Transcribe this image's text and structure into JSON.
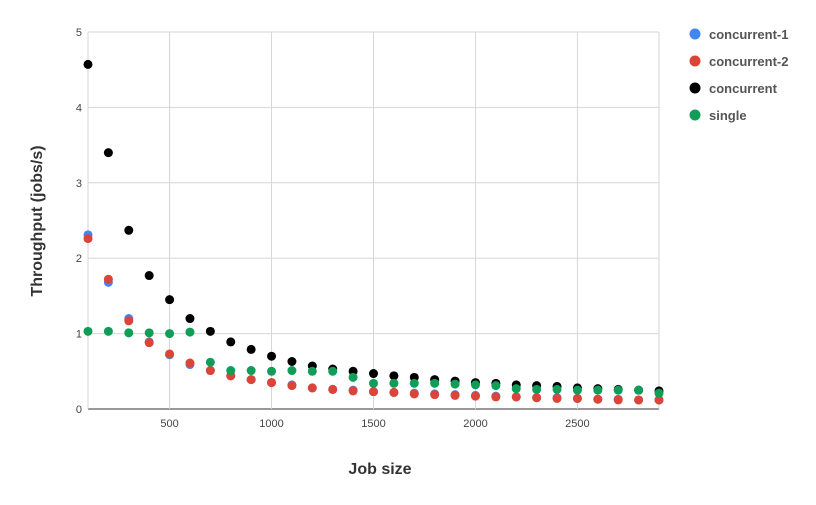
{
  "chart_data": {
    "type": "scatter",
    "xlabel": "Job size",
    "ylabel": "Throughput (jobs/s)",
    "xlim": [
      100,
      2900
    ],
    "ylim": [
      0,
      5
    ],
    "x_ticks": [
      500,
      1000,
      1500,
      2000,
      2500
    ],
    "y_ticks": [
      0,
      1,
      2,
      3,
      4,
      5
    ],
    "grid": true,
    "legend_position": "right",
    "x": [
      100,
      200,
      300,
      400,
      500,
      600,
      700,
      800,
      900,
      1000,
      1100,
      1200,
      1300,
      1400,
      1500,
      1600,
      1700,
      1800,
      1900,
      2000,
      2100,
      2200,
      2300,
      2400,
      2500,
      2600,
      2700,
      2800,
      2900
    ],
    "series": [
      {
        "name": "concurrent-1",
        "color": "#4285f4",
        "values": [
          2.31,
          1.68,
          1.2,
          0.89,
          0.72,
          0.59,
          0.51,
          0.44,
          0.39,
          0.35,
          0.32,
          0.28,
          0.26,
          0.25,
          0.23,
          0.22,
          0.21,
          0.2,
          0.19,
          0.18,
          0.17,
          0.16,
          0.15,
          0.15,
          0.14,
          0.13,
          0.13,
          0.12,
          0.12
        ]
      },
      {
        "name": "concurrent-2",
        "color": "#db4437",
        "values": [
          2.26,
          1.72,
          1.17,
          0.88,
          0.73,
          0.61,
          0.51,
          0.44,
          0.39,
          0.35,
          0.31,
          0.28,
          0.26,
          0.24,
          0.23,
          0.22,
          0.2,
          0.19,
          0.18,
          0.17,
          0.16,
          0.16,
          0.15,
          0.14,
          0.14,
          0.13,
          0.12,
          0.12,
          0.12
        ]
      },
      {
        "name": "concurrent",
        "color": "#000000",
        "values": [
          4.57,
          3.4,
          2.37,
          1.77,
          1.45,
          1.2,
          1.03,
          0.89,
          0.79,
          0.7,
          0.63,
          0.57,
          0.53,
          0.5,
          0.47,
          0.44,
          0.42,
          0.39,
          0.37,
          0.35,
          0.34,
          0.32,
          0.31,
          0.3,
          0.28,
          0.27,
          0.26,
          0.25,
          0.24
        ]
      },
      {
        "name": "single",
        "color": "#0f9d58",
        "values": [
          1.03,
          1.03,
          1.01,
          1.01,
          1.0,
          1.02,
          0.62,
          0.51,
          0.51,
          0.5,
          0.51,
          0.5,
          0.5,
          0.42,
          0.34,
          0.34,
          0.34,
          0.34,
          0.33,
          0.32,
          0.31,
          0.27,
          0.26,
          0.26,
          0.25,
          0.25,
          0.25,
          0.25,
          0.21
        ]
      }
    ]
  }
}
